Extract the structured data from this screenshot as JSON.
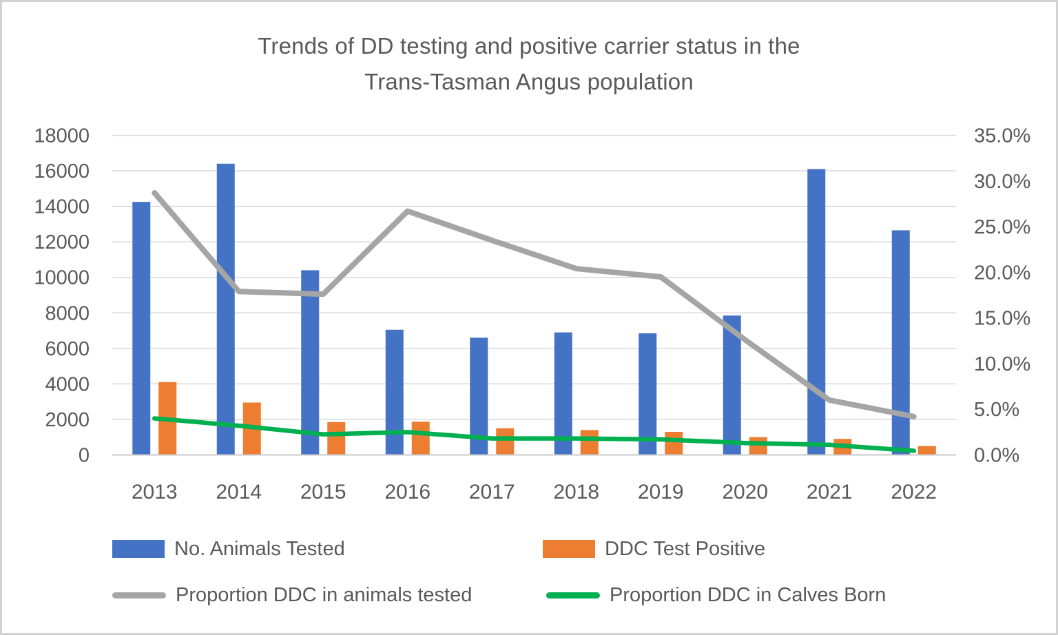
{
  "title_line1": "Trends of DD testing and positive carrier status in the",
  "title_line2": "Trans-Tasman Angus population",
  "colors": {
    "bar_blue": "#4472C4",
    "bar_orange": "#ED7D31",
    "line_gray": "#A5A5A5",
    "line_green": "#00B050",
    "text": "#595959",
    "gridline": "#D9D9D9",
    "axis_line": "#C9C9C9"
  },
  "chart_data": {
    "type": "combo (clustered bars on left axis + lines on right axis)",
    "grid": true,
    "legend_position": "bottom",
    "categories": [
      "2013",
      "2014",
      "2015",
      "2016",
      "2017",
      "2018",
      "2019",
      "2020",
      "2021",
      "2022"
    ],
    "series": [
      {
        "name": "No. Animals Tested",
        "type": "bar",
        "axis": "left",
        "color": "#4472C4",
        "values": [
          14250,
          16400,
          10400,
          7050,
          6600,
          6900,
          6850,
          7850,
          16100,
          12650
        ]
      },
      {
        "name": "DDC Test Positive",
        "type": "bar",
        "axis": "left",
        "color": "#ED7D31",
        "values": [
          4100,
          2950,
          1850,
          1870,
          1500,
          1400,
          1300,
          1000,
          900,
          500
        ]
      },
      {
        "name": "Proportion DDC in animals tested",
        "type": "line",
        "axis": "right",
        "color": "#A5A5A5",
        "values_pct": [
          28.7,
          17.9,
          17.6,
          26.7,
          23.5,
          20.4,
          19.5,
          12.6,
          6.0,
          4.2
        ]
      },
      {
        "name": "Proportion DDC in Calves Born",
        "type": "line",
        "axis": "right",
        "color": "#00B050",
        "values_pct": [
          4.0,
          3.2,
          2.25,
          2.5,
          1.8,
          1.8,
          1.7,
          1.3,
          1.1,
          0.45
        ]
      }
    ],
    "left_axis": {
      "min": 0,
      "max": 18000,
      "step": 2000,
      "tick_labels": [
        "0",
        "2000",
        "4000",
        "6000",
        "8000",
        "10000",
        "12000",
        "14000",
        "16000",
        "18000"
      ]
    },
    "right_axis": {
      "min": 0,
      "max": 35,
      "step": 5,
      "tick_labels": [
        "0.0%",
        "5.0%",
        "10.0%",
        "15.0%",
        "20.0%",
        "25.0%",
        "30.0%",
        "35.0%"
      ]
    }
  }
}
